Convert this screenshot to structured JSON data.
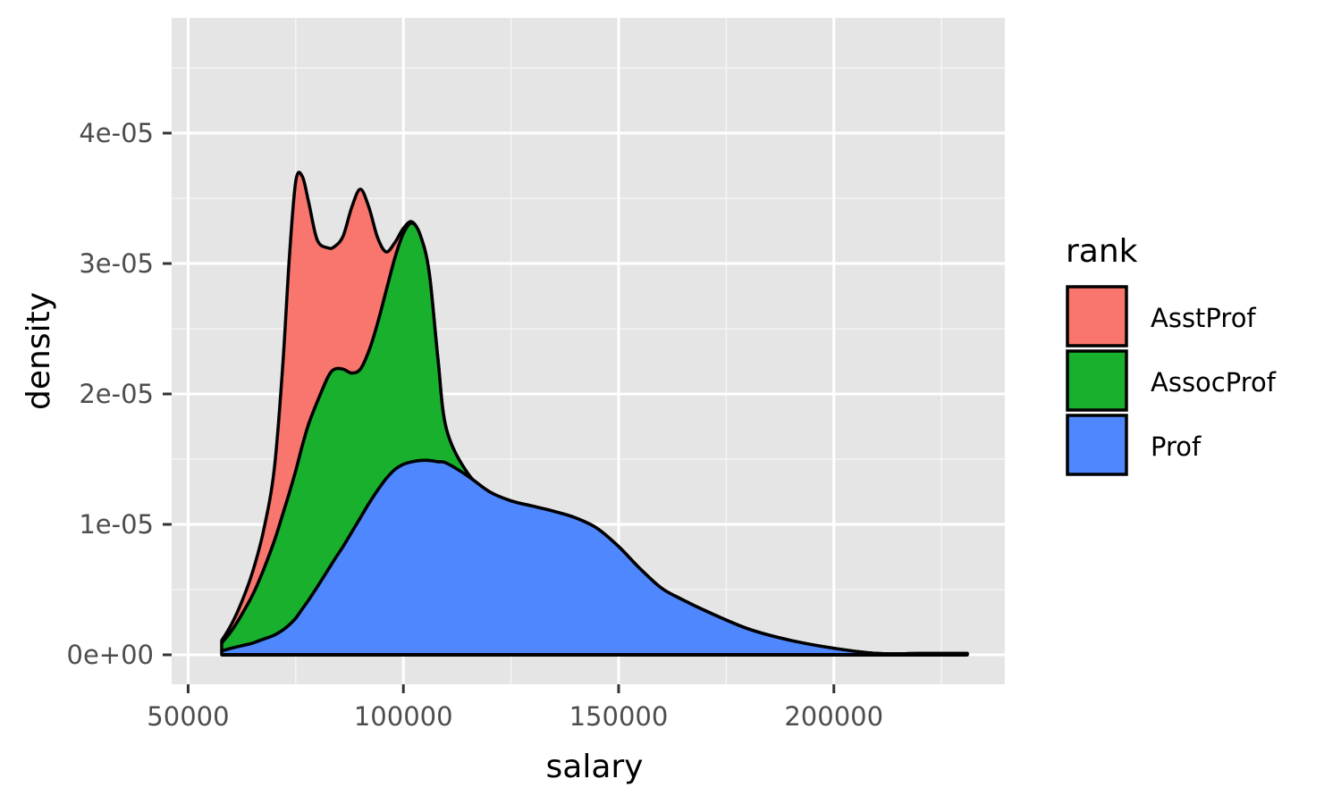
{
  "chart_data": {
    "type": "area",
    "subtype": "stacked-density",
    "xlabel": "salary",
    "ylabel": "density",
    "xlim": [
      50000,
      230000
    ],
    "ylim": [
      0,
      4.75e-05
    ],
    "x_ticks": [
      50000,
      100000,
      150000,
      200000
    ],
    "x_tick_labels": [
      "50000",
      "100000",
      "150000",
      "200000"
    ],
    "y_ticks": [
      0,
      1e-05,
      2e-05,
      3e-05,
      4e-05
    ],
    "y_tick_labels": [
      "0e+00",
      "1e-05",
      "2e-05",
      "3e-05",
      "4e-05"
    ],
    "grid": true,
    "legend": {
      "title": "rank",
      "position": "right"
    },
    "x": [
      57800,
      60000,
      62500,
      65000,
      67500,
      70000,
      72000,
      73500,
      75000,
      76500,
      78000,
      80000,
      82500,
      84000,
      86000,
      88000,
      90000,
      92000,
      94000,
      96000,
      98000,
      100000,
      102000,
      104000,
      106000,
      108000,
      110000,
      115000,
      120000,
      125000,
      130000,
      135000,
      140000,
      145000,
      150000,
      155000,
      160000,
      165000,
      170000,
      180000,
      190000,
      200000,
      210000,
      220000,
      231000
    ],
    "series": [
      {
        "name": "AsstProf",
        "color": "#F8766D",
        "values": [
          2e-07,
          5e-07,
          1e-06,
          1.8e-06,
          3e-06,
          5.5e-06,
          1.15e-05,
          1.8e-05,
          2.22e-05,
          2.07e-05,
          1.7e-05,
          1.24e-05,
          9.9e-06,
          9.4e-06,
          1.02e-05,
          1.27e-05,
          1.38e-05,
          1.1e-05,
          6.6e-06,
          3e-06,
          1.2e-06,
          4e-07,
          1e-07,
          0,
          0,
          0,
          0,
          0,
          0,
          0,
          0,
          0,
          0,
          0,
          0,
          0,
          0,
          0,
          0,
          0,
          0,
          0,
          0,
          0,
          0
        ]
      },
      {
        "name": "AssocProf",
        "color": "#19B02E",
        "values": [
          6e-07,
          1.3e-06,
          2.4e-06,
          3.7e-06,
          5.3e-06,
          7.2e-06,
          8.9e-06,
          1.01e-05,
          1.13e-05,
          1.25e-05,
          1.35e-05,
          1.42e-05,
          1.48e-05,
          1.46e-05,
          1.36e-05,
          1.22e-05,
          1.14e-05,
          1.17e-05,
          1.28e-05,
          1.44e-05,
          1.62e-05,
          1.77e-05,
          1.83e-05,
          1.72e-05,
          1.44e-05,
          8e-06,
          2.6e-06,
          2e-07,
          0,
          0,
          0,
          0,
          0,
          0,
          0,
          0,
          0,
          0,
          0,
          0,
          0,
          0,
          0,
          0,
          0
        ]
      },
      {
        "name": "Prof",
        "color": "#4F87FF",
        "values": [
          3e-07,
          5e-07,
          7e-07,
          9e-07,
          1.2e-06,
          1.5e-06,
          1.9e-06,
          2.3e-06,
          2.8e-06,
          3.5e-06,
          4.2e-06,
          5.2e-06,
          6.5e-06,
          7.3e-06,
          8.3e-06,
          9.4e-06,
          1.05e-05,
          1.16e-05,
          1.26e-05,
          1.35e-05,
          1.42e-05,
          1.46e-05,
          1.48e-05,
          1.49e-05,
          1.49e-05,
          1.48e-05,
          1.47e-05,
          1.37e-05,
          1.25e-05,
          1.18e-05,
          1.14e-05,
          1.1e-05,
          1.05e-05,
          9.7e-06,
          8.3e-06,
          6.6e-06,
          5.1e-06,
          4.2e-06,
          3.4e-06,
          2e-06,
          1.1e-06,
          5e-07,
          1e-07,
          1e-07,
          1e-07
        ]
      }
    ]
  }
}
